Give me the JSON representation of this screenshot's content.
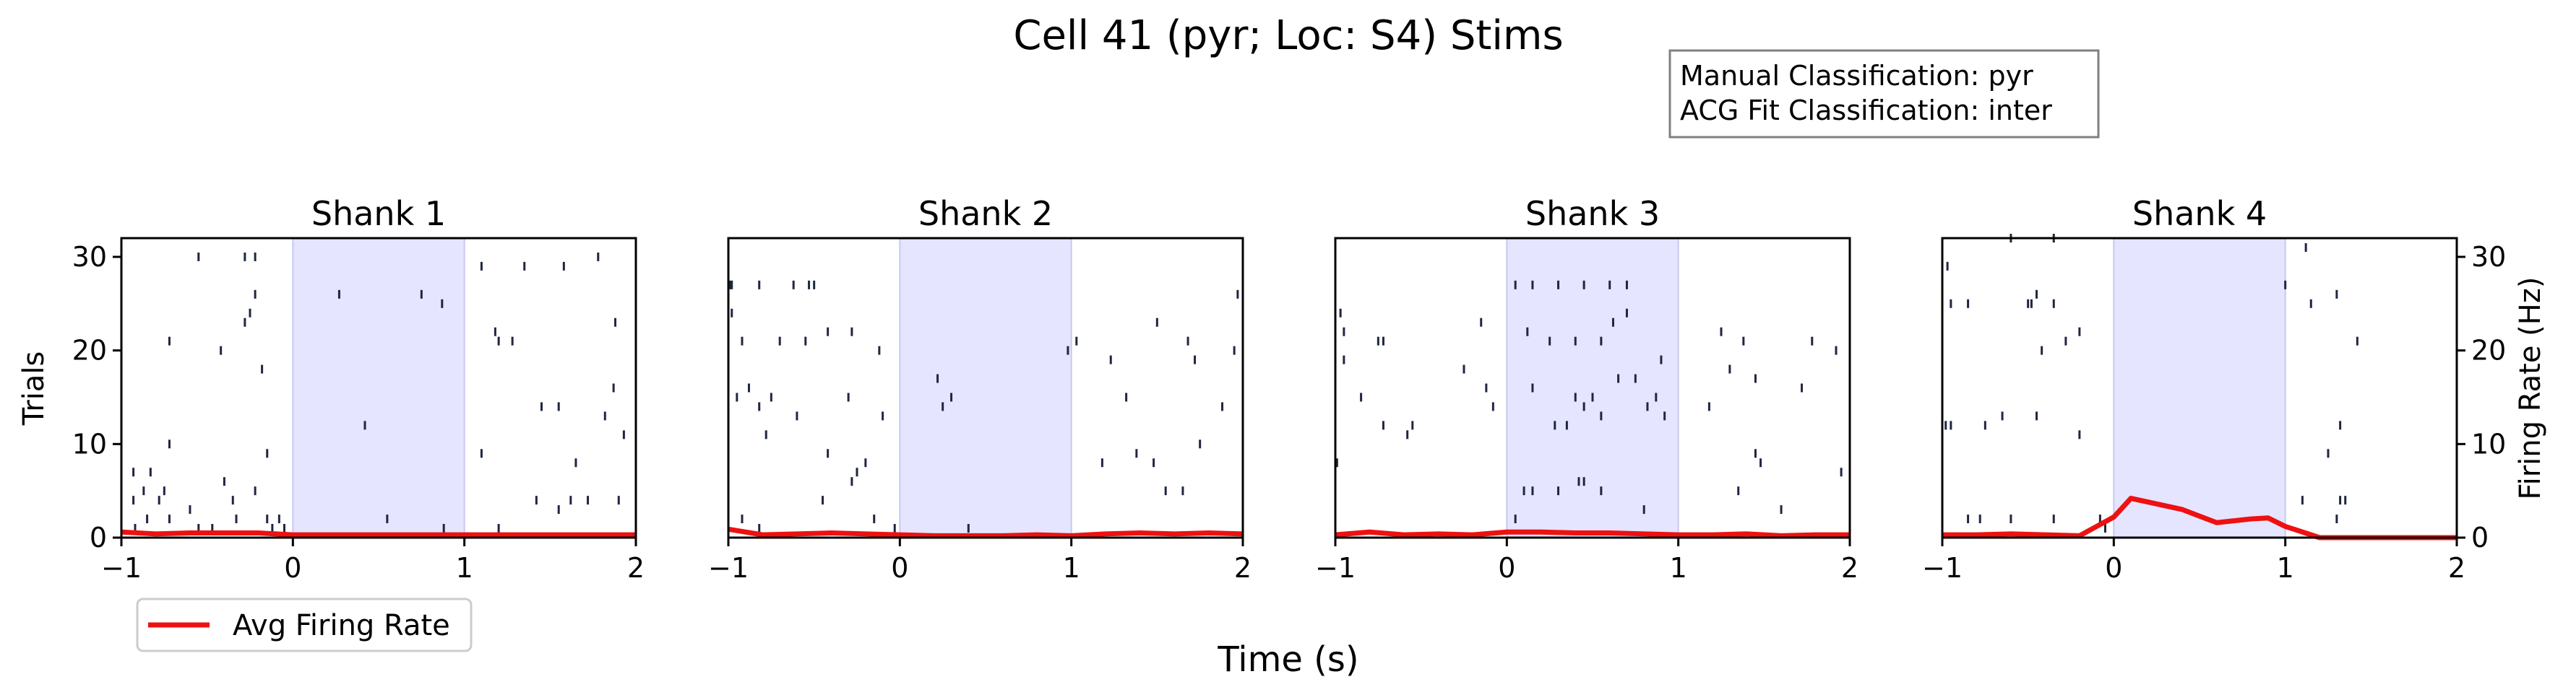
{
  "figure": {
    "title": "Cell 41 (pyr; Loc: S4) Stims",
    "xlabel": "Time (s)",
    "ylabel_left": "Trials",
    "ylabel_right": "Firing Rate (Hz)",
    "info_box": [
      "Manual Classification: pyr",
      "ACG Fit Classification: inter"
    ],
    "legend_label": "Avg Firing Rate"
  },
  "colors": {
    "stim_fill": "#e5e5ff",
    "stim_edge": "#c8c8f0",
    "spike": "#1f2640",
    "rate_line": "#ee1111"
  },
  "chart_data": [
    {
      "type": "line",
      "title": "Shank 1",
      "xlim": [
        -1,
        2
      ],
      "ylim": [
        0,
        32
      ],
      "rate_ylim": [
        0,
        32
      ],
      "stim_window": [
        0,
        1
      ],
      "xticks": [
        "−1",
        "0",
        "1",
        "2"
      ],
      "yticks": [
        "0",
        "10",
        "20",
        "30"
      ],
      "show_left_axis": true,
      "show_right_axis": false,
      "spikes": [
        [
          -0.92,
          1
        ],
        [
          -0.85,
          2
        ],
        [
          -0.72,
          2
        ],
        [
          -0.55,
          1
        ],
        [
          -0.47,
          1
        ],
        [
          -0.33,
          2
        ],
        [
          -0.12,
          1
        ],
        [
          -0.08,
          2
        ],
        [
          -0.93,
          4
        ],
        [
          -0.78,
          4
        ],
        [
          -0.6,
          3
        ],
        [
          -0.35,
          4
        ],
        [
          -0.22,
          5
        ],
        [
          -0.15,
          2
        ],
        [
          -0.05,
          1
        ],
        [
          0.55,
          2
        ],
        [
          0.88,
          1
        ],
        [
          1.2,
          1
        ],
        [
          1.55,
          3
        ],
        [
          1.9,
          4
        ],
        [
          -0.93,
          7
        ],
        [
          -0.83,
          7
        ],
        [
          -0.87,
          5
        ],
        [
          -0.75,
          5
        ],
        [
          -0.15,
          9
        ],
        [
          -0.72,
          10
        ],
        [
          -0.4,
          6
        ],
        [
          1.42,
          4
        ],
        [
          1.62,
          4
        ],
        [
          1.72,
          4
        ],
        [
          1.65,
          8
        ],
        [
          1.87,
          16
        ],
        [
          1.93,
          11
        ],
        [
          1.45,
          14
        ],
        [
          1.55,
          14
        ],
        [
          1.82,
          13
        ],
        [
          1.1,
          9
        ],
        [
          0.42,
          12
        ],
        [
          -0.18,
          18
        ],
        [
          -0.42,
          20
        ],
        [
          -0.72,
          21
        ],
        [
          -0.28,
          23
        ],
        [
          -0.25,
          24
        ],
        [
          -0.22,
          26
        ],
        [
          -0.55,
          30
        ],
        [
          -0.28,
          30
        ],
        [
          -0.22,
          30
        ],
        [
          1.1,
          29
        ],
        [
          1.35,
          29
        ],
        [
          1.58,
          29
        ],
        [
          1.78,
          30
        ],
        [
          1.2,
          21
        ],
        [
          1.28,
          21
        ],
        [
          1.18,
          22
        ],
        [
          1.88,
          23
        ],
        [
          0.27,
          26
        ],
        [
          0.75,
          26
        ],
        [
          0.87,
          25
        ]
      ],
      "rate_x": [
        -1,
        -0.8,
        -0.6,
        -0.4,
        -0.2,
        0,
        0.2,
        0.4,
        0.6,
        0.8,
        1,
        1.2,
        1.4,
        1.6,
        1.8,
        2
      ],
      "rate_y": [
        0.6,
        0.4,
        0.5,
        0.5,
        0.5,
        0.3,
        0.3,
        0.3,
        0.3,
        0.3,
        0.3,
        0.3,
        0.3,
        0.3,
        0.3,
        0.3
      ]
    },
    {
      "type": "line",
      "title": "Shank 2",
      "xlim": [
        -1,
        2
      ],
      "ylim": [
        0,
        32
      ],
      "rate_ylim": [
        0,
        32
      ],
      "stim_window": [
        0,
        1
      ],
      "xticks": [
        "−1",
        "0",
        "1",
        "2"
      ],
      "yticks": [],
      "show_left_axis": false,
      "show_right_axis": false,
      "spikes": [
        [
          -0.98,
          27
        ],
        [
          -0.99,
          27
        ],
        [
          -0.82,
          27
        ],
        [
          -0.62,
          27
        ],
        [
          -0.53,
          27
        ],
        [
          -0.5,
          27
        ],
        [
          -0.98,
          24
        ],
        [
          -0.92,
          21
        ],
        [
          -0.7,
          21
        ],
        [
          -0.55,
          21
        ],
        [
          -0.42,
          22
        ],
        [
          -0.28,
          22
        ],
        [
          -0.12,
          20
        ],
        [
          -0.95,
          15
        ],
        [
          -0.88,
          16
        ],
        [
          -0.82,
          14
        ],
        [
          -0.75,
          15
        ],
        [
          -0.6,
          13
        ],
        [
          -0.3,
          15
        ],
        [
          -0.1,
          13
        ],
        [
          -0.78,
          11
        ],
        [
          -0.42,
          9
        ],
        [
          -0.28,
          6
        ],
        [
          -0.25,
          7
        ],
        [
          -0.2,
          8
        ],
        [
          -0.45,
          4
        ],
        [
          -0.15,
          2
        ],
        [
          -0.92,
          2
        ],
        [
          -0.82,
          1
        ],
        [
          -0.03,
          1
        ],
        [
          0.22,
          17
        ],
        [
          0.25,
          14
        ],
        [
          0.3,
          15
        ],
        [
          0.4,
          1
        ],
        [
          0.98,
          20
        ],
        [
          1.03,
          21
        ],
        [
          1.23,
          19
        ],
        [
          1.32,
          15
        ],
        [
          1.38,
          9
        ],
        [
          1.48,
          8
        ],
        [
          1.18,
          8
        ],
        [
          1.65,
          5
        ],
        [
          1.55,
          5
        ],
        [
          1.75,
          10
        ],
        [
          1.88,
          14
        ],
        [
          1.95,
          20
        ],
        [
          1.97,
          26
        ],
        [
          1.5,
          23
        ],
        [
          1.68,
          21
        ],
        [
          1.72,
          19
        ]
      ],
      "rate_x": [
        -1,
        -0.8,
        -0.6,
        -0.4,
        -0.2,
        0,
        0.2,
        0.4,
        0.6,
        0.8,
        1,
        1.2,
        1.4,
        1.6,
        1.8,
        2
      ],
      "rate_y": [
        0.9,
        0.3,
        0.4,
        0.5,
        0.4,
        0.3,
        0.2,
        0.2,
        0.2,
        0.3,
        0.2,
        0.4,
        0.5,
        0.4,
        0.5,
        0.4
      ]
    },
    {
      "type": "line",
      "title": "Shank 3",
      "xlim": [
        -1,
        2
      ],
      "ylim": [
        0,
        32
      ],
      "rate_ylim": [
        0,
        32
      ],
      "stim_window": [
        0,
        1
      ],
      "xticks": [
        "−1",
        "0",
        "1",
        "2"
      ],
      "yticks": [],
      "show_left_axis": false,
      "show_right_axis": false,
      "spikes": [
        [
          -0.97,
          24
        ],
        [
          -0.95,
          22
        ],
        [
          -0.95,
          19
        ],
        [
          -0.75,
          21
        ],
        [
          -0.72,
          21
        ],
        [
          -0.85,
          15
        ],
        [
          -0.72,
          12
        ],
        [
          -0.58,
          11
        ],
        [
          -0.55,
          12
        ],
        [
          -0.08,
          14
        ],
        [
          -0.12,
          16
        ],
        [
          -0.25,
          18
        ],
        [
          -0.15,
          23
        ],
        [
          -0.99,
          8
        ],
        [
          0.05,
          2
        ],
        [
          0.1,
          5
        ],
        [
          0.15,
          5
        ],
        [
          0.3,
          5
        ],
        [
          0.42,
          6
        ],
        [
          0.45,
          6
        ],
        [
          0.55,
          5
        ],
        [
          0.35,
          12
        ],
        [
          0.4,
          15
        ],
        [
          0.45,
          14
        ],
        [
          0.5,
          15
        ],
        [
          0.15,
          16
        ],
        [
          0.65,
          17
        ],
        [
          0.75,
          17
        ],
        [
          0.82,
          14
        ],
        [
          0.92,
          13
        ],
        [
          0.12,
          22
        ],
        [
          0.25,
          21
        ],
        [
          0.4,
          21
        ],
        [
          0.55,
          21
        ],
        [
          0.62,
          23
        ],
        [
          0.7,
          24
        ],
        [
          0.05,
          27
        ],
        [
          0.15,
          27
        ],
        [
          0.3,
          27
        ],
        [
          0.45,
          27
        ],
        [
          0.6,
          27
        ],
        [
          0.7,
          27
        ],
        [
          0.28,
          12
        ],
        [
          0.55,
          13
        ],
        [
          0.87,
          15
        ],
        [
          0.9,
          19
        ],
        [
          1.25,
          22
        ],
        [
          1.38,
          21
        ],
        [
          1.45,
          17
        ],
        [
          1.3,
          18
        ],
        [
          1.18,
          14
        ],
        [
          1.35,
          5
        ],
        [
          1.48,
          8
        ],
        [
          1.45,
          9
        ],
        [
          1.6,
          3
        ],
        [
          1.72,
          16
        ],
        [
          1.78,
          21
        ],
        [
          1.92,
          20
        ],
        [
          1.95,
          7
        ],
        [
          0.8,
          3
        ]
      ],
      "rate_x": [
        -1,
        -0.8,
        -0.6,
        -0.4,
        -0.2,
        0,
        0.2,
        0.4,
        0.6,
        0.8,
        1,
        1.2,
        1.4,
        1.6,
        1.8,
        2
      ],
      "rate_y": [
        0.3,
        0.6,
        0.3,
        0.4,
        0.3,
        0.6,
        0.6,
        0.5,
        0.5,
        0.4,
        0.3,
        0.3,
        0.4,
        0.2,
        0.3,
        0.3
      ]
    },
    {
      "type": "line",
      "title": "Shank 4",
      "xlim": [
        -1,
        2
      ],
      "ylim": [
        0,
        32
      ],
      "rate_ylim": [
        0,
        32
      ],
      "stim_window": [
        0,
        1
      ],
      "xticks": [
        "−1",
        "0",
        "1",
        "2"
      ],
      "yticks": [
        "0",
        "10",
        "20",
        "30"
      ],
      "show_left_axis": false,
      "show_right_axis": true,
      "spikes": [
        [
          -0.97,
          29
        ],
        [
          -0.95,
          12
        ],
        [
          -0.98,
          12
        ],
        [
          -0.75,
          12
        ],
        [
          -0.85,
          2
        ],
        [
          -0.78,
          2
        ],
        [
          -0.6,
          2
        ],
        [
          -0.35,
          2
        ],
        [
          -0.45,
          26
        ],
        [
          -0.95,
          25
        ],
        [
          -0.85,
          25
        ],
        [
          -0.5,
          25
        ],
        [
          -0.48,
          25
        ],
        [
          -0.35,
          25
        ],
        [
          -0.2,
          22
        ],
        [
          -0.28,
          21
        ],
        [
          -0.42,
          20
        ],
        [
          -0.65,
          13
        ],
        [
          -0.45,
          13
        ],
        [
          -0.2,
          11
        ],
        [
          -0.08,
          2
        ],
        [
          -0.05,
          1
        ],
        [
          -0.6,
          32
        ],
        [
          -0.35,
          32
        ],
        [
          1.12,
          31
        ],
        [
          1.3,
          26
        ],
        [
          1.42,
          21
        ],
        [
          1.32,
          12
        ],
        [
          1.32,
          4
        ],
        [
          1.25,
          9
        ],
        [
          1.1,
          4
        ],
        [
          1.35,
          4
        ],
        [
          1.15,
          25
        ],
        [
          1.0,
          27
        ],
        [
          1.3,
          2
        ]
      ],
      "rate_x": [
        -1,
        -0.8,
        -0.6,
        -0.4,
        -0.2,
        0,
        0.1,
        0.2,
        0.4,
        0.6,
        0.8,
        0.9,
        1,
        1.2,
        1.4,
        1.6,
        1.8,
        2
      ],
      "rate_y": [
        0.3,
        0.3,
        0.4,
        0.3,
        0.2,
        2.2,
        4.2,
        3.8,
        3.0,
        1.6,
        2.0,
        2.1,
        1.2,
        0,
        0,
        0,
        0,
        0
      ]
    }
  ]
}
